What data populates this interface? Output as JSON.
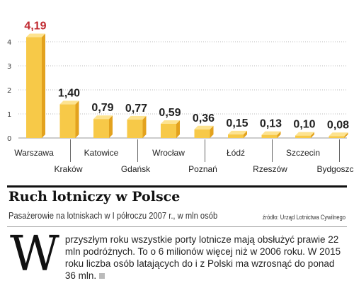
{
  "chart_data": {
    "type": "bar",
    "categories": [
      "Warszawa",
      "Kraków",
      "Katowice",
      "Gdańsk",
      "Wrocław",
      "Poznań",
      "Łódź",
      "Rzeszów",
      "Szczecin",
      "Bydgoszcz"
    ],
    "values": [
      4.19,
      1.4,
      0.79,
      0.77,
      0.59,
      0.36,
      0.15,
      0.13,
      0.1,
      0.08
    ],
    "value_labels": [
      "4,19",
      "1,40",
      "0,79",
      "0,77",
      "0,59",
      "0,36",
      "0,15",
      "0,13",
      "0,10",
      "0,08"
    ],
    "yticks": [
      "0",
      "1",
      "2",
      "3",
      "4"
    ],
    "ylim": [
      0,
      4.5
    ],
    "grid": "horizontal dotted",
    "highlight_index": 0,
    "colors": {
      "bar": "#f7c948",
      "bar_side": "#e3a21e",
      "bar_top": "#fde390",
      "highlight_value": "#c0282f"
    }
  },
  "header": {
    "title": "Ruch lotniczy w Polsce",
    "subtitle": "Pasażerowie na lotniskach w I półroczu 2007 r., w mln osób",
    "source": "źródło: Urząd Lotnictwa Cywilnego"
  },
  "article": {
    "dropcap": "W",
    "text": "przyszłym roku wszystkie porty lotnicze mają obsłużyć prawie 22 mln podróżnych. To o 6 milionów więcej niż w 2006 roku. W 2015 roku liczba osób latających do i z Polski ma wzrosnąć do ponad 36 mln."
  }
}
